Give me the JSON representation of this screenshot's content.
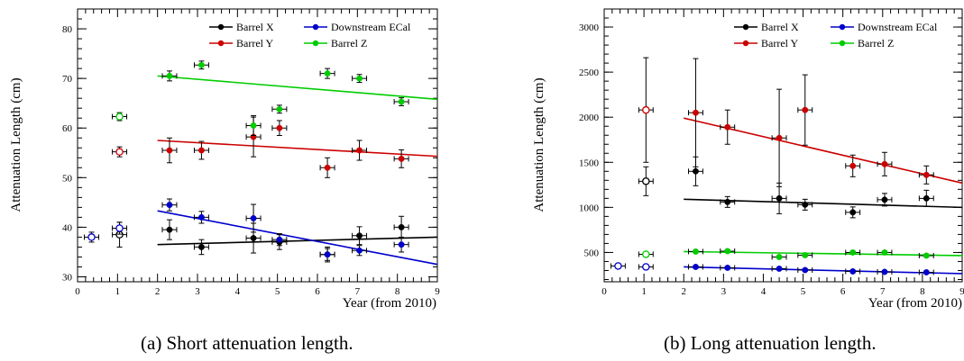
{
  "chart_data": [
    {
      "type": "scatter",
      "caption": "(a) Short attenuation length.",
      "xlabel": "Year (from 2010)",
      "ylabel": "Attenuation Length (cm)",
      "xlim": [
        0,
        9
      ],
      "ylim": [
        29,
        84
      ],
      "xticks": [
        0,
        1,
        2,
        3,
        4,
        5,
        6,
        7,
        8,
        9
      ],
      "yticks": [
        30,
        40,
        50,
        60,
        70,
        80
      ],
      "legend_position": "top-right",
      "series": [
        {
          "name": "Barrel X",
          "color": "#000000",
          "points": [
            {
              "x": 1.05,
              "y": 38.5,
              "yerr": 2.5,
              "open": true
            },
            {
              "x": 2.3,
              "y": 39.5,
              "yerr": 2.0
            },
            {
              "x": 3.1,
              "y": 36.0,
              "yerr": 1.5
            },
            {
              "x": 4.4,
              "y": 37.8,
              "yerr": 3.0
            },
            {
              "x": 5.05,
              "y": 37.0,
              "yerr": 1.5
            },
            {
              "x": 6.25,
              "y": 34.5,
              "yerr": 1.5
            },
            {
              "x": 7.05,
              "y": 38.3,
              "yerr": 1.8
            },
            {
              "x": 8.1,
              "y": 40.0,
              "yerr": 2.2
            }
          ],
          "fit": {
            "x": [
              2,
              9
            ],
            "y": [
              36.5,
              38.0
            ]
          }
        },
        {
          "name": "Downstream ECal",
          "color": "#0000cc",
          "points": [
            {
              "x": 0.35,
              "y": 38.0,
              "yerr": 1.0,
              "open": true
            },
            {
              "x": 1.05,
              "y": 39.8,
              "yerr": 1.2,
              "open": true
            },
            {
              "x": 2.3,
              "y": 44.5,
              "yerr": 1.2
            },
            {
              "x": 3.1,
              "y": 42.0,
              "yerr": 1.2
            },
            {
              "x": 4.4,
              "y": 41.8,
              "yerr": 2.8
            },
            {
              "x": 5.05,
              "y": 37.5,
              "yerr": 1.2
            },
            {
              "x": 6.25,
              "y": 34.5,
              "yerr": 1.2
            },
            {
              "x": 7.05,
              "y": 35.3,
              "yerr": 1.0
            },
            {
              "x": 8.1,
              "y": 36.5,
              "yerr": 1.5
            }
          ],
          "fit": {
            "x": [
              2,
              9
            ],
            "y": [
              43.3,
              32.5
            ]
          }
        },
        {
          "name": "Barrel Y",
          "color": "#cc0000",
          "points": [
            {
              "x": 1.05,
              "y": 55.2,
              "yerr": 1.0,
              "open": true
            },
            {
              "x": 2.3,
              "y": 55.5,
              "yerr": 2.5
            },
            {
              "x": 3.1,
              "y": 55.5,
              "yerr": 1.8
            },
            {
              "x": 4.4,
              "y": 58.2,
              "yerr": 4.0
            },
            {
              "x": 5.05,
              "y": 60.0,
              "yerr": 1.5
            },
            {
              "x": 6.25,
              "y": 52.0,
              "yerr": 2.0
            },
            {
              "x": 7.05,
              "y": 55.5,
              "yerr": 2.0
            },
            {
              "x": 8.1,
              "y": 53.8,
              "yerr": 1.8
            }
          ],
          "fit": {
            "x": [
              2,
              9
            ],
            "y": [
              57.5,
              54.3
            ]
          }
        },
        {
          "name": "Barrel Z",
          "color": "#00cc00",
          "points": [
            {
              "x": 1.05,
              "y": 62.3,
              "yerr": 0.8,
              "open": true
            },
            {
              "x": 2.3,
              "y": 70.5,
              "yerr": 1.0
            },
            {
              "x": 3.1,
              "y": 72.7,
              "yerr": 0.8
            },
            {
              "x": 4.4,
              "y": 60.5,
              "yerr": 2.0
            },
            {
              "x": 5.05,
              "y": 63.8,
              "yerr": 0.8
            },
            {
              "x": 6.25,
              "y": 71.0,
              "yerr": 1.0
            },
            {
              "x": 7.05,
              "y": 70.0,
              "yerr": 0.8
            },
            {
              "x": 8.1,
              "y": 65.3,
              "yerr": 0.8
            }
          ],
          "fit": {
            "x": [
              2,
              9
            ],
            "y": [
              70.5,
              65.8
            ]
          }
        }
      ]
    },
    {
      "type": "scatter",
      "caption": "(b) Long attenuation length.",
      "xlabel": "Year (from 2010)",
      "ylabel": "Attenuation Length (cm)",
      "xlim": [
        0,
        9
      ],
      "ylim": [
        175,
        3200
      ],
      "xticks": [
        0,
        1,
        2,
        3,
        4,
        5,
        6,
        7,
        8,
        9
      ],
      "yticks": [
        500,
        1000,
        1500,
        2000,
        2500,
        3000
      ],
      "legend_position": "top-right",
      "series": [
        {
          "name": "Barrel X",
          "color": "#000000",
          "points": [
            {
              "x": 1.05,
              "y": 1290,
              "yerr": 160,
              "open": true
            },
            {
              "x": 2.3,
              "y": 1400,
              "yerr": 160
            },
            {
              "x": 3.1,
              "y": 1060,
              "yerr": 60
            },
            {
              "x": 4.4,
              "y": 1100,
              "yerr": 170
            },
            {
              "x": 5.05,
              "y": 1030,
              "yerr": 60
            },
            {
              "x": 6.25,
              "y": 945,
              "yerr": 60
            },
            {
              "x": 7.05,
              "y": 1085,
              "yerr": 70
            },
            {
              "x": 8.1,
              "y": 1100,
              "yerr": 90
            }
          ],
          "fit": {
            "x": [
              2,
              9
            ],
            "y": [
              1090,
              1000
            ]
          }
        },
        {
          "name": "Downstream ECal",
          "color": "#0000cc",
          "points": [
            {
              "x": 0.35,
              "y": 350,
              "yerr": 15,
              "open": true
            },
            {
              "x": 1.05,
              "y": 340,
              "yerr": 15,
              "open": true
            },
            {
              "x": 2.3,
              "y": 340,
              "yerr": 15
            },
            {
              "x": 3.1,
              "y": 330,
              "yerr": 15
            },
            {
              "x": 4.4,
              "y": 320,
              "yerr": 15
            },
            {
              "x": 5.05,
              "y": 305,
              "yerr": 15
            },
            {
              "x": 6.25,
              "y": 290,
              "yerr": 15
            },
            {
              "x": 7.05,
              "y": 285,
              "yerr": 15
            },
            {
              "x": 8.1,
              "y": 280,
              "yerr": 15
            }
          ],
          "fit": {
            "x": [
              2,
              9
            ],
            "y": [
              340,
              265
            ]
          }
        },
        {
          "name": "Barrel Y",
          "color": "#cc0000",
          "points": [
            {
              "x": 1.05,
              "y": 2080,
              "yerr": 580,
              "open": true
            },
            {
              "x": 2.3,
              "y": 2050,
              "yerr": 600
            },
            {
              "x": 3.1,
              "y": 1890,
              "yerr": 190
            },
            {
              "x": 4.4,
              "y": 1770,
              "yerr": 540
            },
            {
              "x": 5.05,
              "y": 2080,
              "yerr": 390
            },
            {
              "x": 6.25,
              "y": 1460,
              "yerr": 120
            },
            {
              "x": 7.05,
              "y": 1480,
              "yerr": 130
            },
            {
              "x": 8.1,
              "y": 1360,
              "yerr": 100
            }
          ],
          "fit": {
            "x": [
              2,
              9
            ],
            "y": [
              1990,
              1270
            ]
          }
        },
        {
          "name": "Barrel Z",
          "color": "#00cc00",
          "points": [
            {
              "x": 1.05,
              "y": 480,
              "yerr": 15,
              "open": true
            },
            {
              "x": 2.3,
              "y": 510,
              "yerr": 15
            },
            {
              "x": 3.1,
              "y": 515,
              "yerr": 15
            },
            {
              "x": 4.4,
              "y": 450,
              "yerr": 15
            },
            {
              "x": 5.05,
              "y": 470,
              "yerr": 15
            },
            {
              "x": 6.25,
              "y": 500,
              "yerr": 15
            },
            {
              "x": 7.05,
              "y": 500,
              "yerr": 15
            },
            {
              "x": 8.1,
              "y": 465,
              "yerr": 15
            }
          ],
          "fit": {
            "x": [
              2,
              9
            ],
            "y": [
              510,
              465
            ]
          }
        }
      ]
    }
  ]
}
